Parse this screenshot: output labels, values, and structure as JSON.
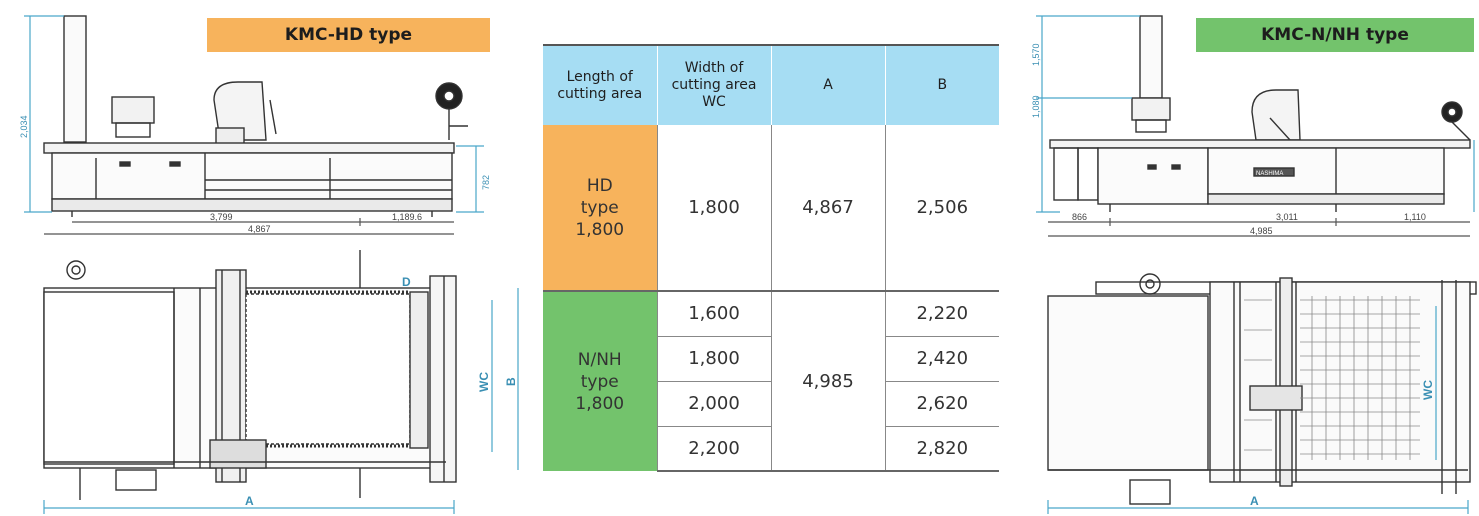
{
  "labels": {
    "hd_badge": "KMC-HD type",
    "nh_badge": "KMC-N/NH type"
  },
  "colors": {
    "hd_accent": "#f7b35c",
    "nh_accent": "#73c36c",
    "header_bg": "#a6ddf3",
    "dimension_line": "#4aa6c9",
    "drawing_line": "#333333"
  },
  "hd_drawing": {
    "height_total": "2,034",
    "table_height": "782",
    "len_main": "3,799",
    "len_right": "1,189.6",
    "len_total": "4,867",
    "plan_width": "WC",
    "plan_depth": "B",
    "plan_length": "A",
    "plan_marker": "D"
  },
  "nh_drawing": {
    "height_low": "1,080",
    "height_high": "1,570",
    "len_left": "866",
    "len_main": "3,011",
    "len_right": "1,110",
    "len_total": "4,985",
    "brand_plate": "NASHIMA",
    "plan_width": "WC",
    "plan_length": "A"
  },
  "spec_table": {
    "headers": {
      "length_line1": "Length of",
      "length_line2": "cutting area",
      "width_line1": "Width of",
      "width_line2": "cutting area",
      "width_line3": "WC",
      "a": "A",
      "b": "B"
    },
    "hd": {
      "group_line1": "HD",
      "group_line2": "type",
      "group_line3": "1,800",
      "wc": "1,800",
      "a": "4,867",
      "b": "2,506"
    },
    "nh": {
      "group_line1": "N/NH",
      "group_line2": "type",
      "group_line3": "1,800",
      "a": "4,985",
      "rows": [
        {
          "wc": "1,600",
          "b": "2,220"
        },
        {
          "wc": "1,800",
          "b": "2,420"
        },
        {
          "wc": "2,000",
          "b": "2,620"
        },
        {
          "wc": "2,200",
          "b": "2,820"
        }
      ]
    }
  }
}
